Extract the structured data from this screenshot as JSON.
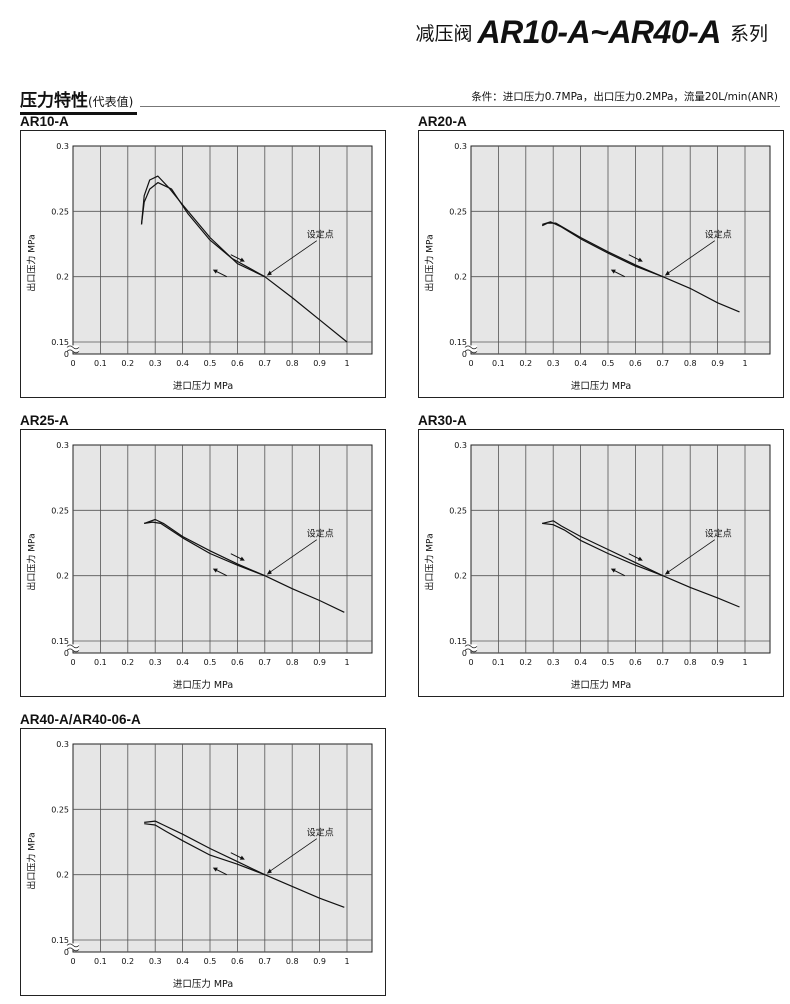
{
  "header": {
    "prefix": "减压阀",
    "model": "AR10-A~AR40-A",
    "suffix": "系列"
  },
  "section": {
    "title": "压力特性",
    "subtitle": "(代表值)",
    "conditions": "条件：进口压力0.7MPa，出口压力0.2MPa，流量20L/min(ANR)"
  },
  "colors": {
    "line": "#111111",
    "grid": "#555555",
    "plot_bg": "#e6e6e6"
  },
  "chart_data": [
    {
      "type": "line",
      "label": "AR10-A",
      "xlabel": "进口压力 MPa",
      "ylabel": "出口压力 MPa",
      "xlim": [
        0,
        1.1
      ],
      "ylim": [
        0,
        0.3
      ],
      "y_axis_break": "0-0.15",
      "x_ticks": [
        "0",
        "0.1",
        "0.2",
        "0.3",
        "0.4",
        "0.5",
        "0.6",
        "0.7",
        "0.8",
        "0.9",
        "1"
      ],
      "y_ticks": [
        "0",
        "0.15",
        "0.2",
        "0.25",
        "0.3"
      ],
      "grid": true,
      "annotation": {
        "text": "设定点",
        "point": [
          0.7,
          0.2
        ]
      },
      "series": [
        {
          "x": [
            0.7,
            0.6,
            0.5,
            0.4,
            0.35,
            0.31,
            0.28,
            0.26,
            0.25
          ],
          "y": [
            0.2,
            0.21,
            0.23,
            0.255,
            0.268,
            0.277,
            0.274,
            0.262,
            0.24
          ]
        },
        {
          "x": [
            0.25,
            0.26,
            0.28,
            0.31,
            0.36,
            0.42,
            0.5,
            0.58,
            0.64,
            0.7,
            0.8,
            0.9,
            1.0
          ],
          "y": [
            0.24,
            0.257,
            0.267,
            0.272,
            0.267,
            0.248,
            0.228,
            0.214,
            0.207,
            0.2,
            0.184,
            0.167,
            0.15
          ]
        }
      ]
    },
    {
      "type": "line",
      "label": "AR20-A",
      "xlabel": "进口压力 MPa",
      "ylabel": "出口压力 MPa",
      "xlim": [
        0,
        1.1
      ],
      "ylim": [
        0,
        0.3
      ],
      "y_axis_break": "0-0.15",
      "x_ticks": [
        "0",
        "0.1",
        "0.2",
        "0.3",
        "0.4",
        "0.5",
        "0.6",
        "0.7",
        "0.8",
        "0.9",
        "1"
      ],
      "y_ticks": [
        "0",
        "0.15",
        "0.2",
        "0.25",
        "0.3"
      ],
      "grid": true,
      "annotation": {
        "text": "设定点",
        "point": [
          0.7,
          0.2
        ]
      },
      "series": [
        {
          "x": [
            0.7,
            0.6,
            0.5,
            0.4,
            0.33,
            0.29,
            0.26
          ],
          "y": [
            0.2,
            0.208,
            0.218,
            0.229,
            0.238,
            0.242,
            0.24
          ]
        },
        {
          "x": [
            0.26,
            0.28,
            0.31,
            0.4,
            0.5,
            0.6,
            0.7,
            0.8,
            0.9,
            0.98
          ],
          "y": [
            0.239,
            0.241,
            0.241,
            0.23,
            0.219,
            0.209,
            0.2,
            0.191,
            0.18,
            0.173
          ]
        }
      ]
    },
    {
      "type": "line",
      "label": "AR25-A",
      "xlabel": "进口压力 MPa",
      "ylabel": "出口压力 MPa",
      "xlim": [
        0,
        1.1
      ],
      "ylim": [
        0,
        0.3
      ],
      "y_axis_break": "0-0.15",
      "x_ticks": [
        "0",
        "0.1",
        "0.2",
        "0.3",
        "0.4",
        "0.5",
        "0.6",
        "0.7",
        "0.8",
        "0.9",
        "1"
      ],
      "y_ticks": [
        "0",
        "0.15",
        "0.2",
        "0.25",
        "0.3"
      ],
      "grid": true,
      "annotation": {
        "text": "设定点",
        "point": [
          0.7,
          0.2
        ]
      },
      "series": [
        {
          "x": [
            0.7,
            0.6,
            0.5,
            0.4,
            0.33,
            0.3,
            0.26
          ],
          "y": [
            0.2,
            0.209,
            0.219,
            0.23,
            0.24,
            0.243,
            0.24
          ]
        },
        {
          "x": [
            0.26,
            0.29,
            0.32,
            0.4,
            0.5,
            0.6,
            0.7,
            0.8,
            0.9,
            0.99
          ],
          "y": [
            0.24,
            0.241,
            0.24,
            0.229,
            0.217,
            0.208,
            0.2,
            0.19,
            0.181,
            0.172
          ]
        }
      ]
    },
    {
      "type": "line",
      "label": "AR30-A",
      "xlabel": "进口压力 MPa",
      "ylabel": "出口压力 MPa",
      "xlim": [
        0,
        1.1
      ],
      "ylim": [
        0,
        0.3
      ],
      "y_axis_break": "0-0.15",
      "x_ticks": [
        "0",
        "0.1",
        "0.2",
        "0.3",
        "0.4",
        "0.5",
        "0.6",
        "0.7",
        "0.8",
        "0.9",
        "1"
      ],
      "y_ticks": [
        "0",
        "0.15",
        "0.2",
        "0.25",
        "0.3"
      ],
      "grid": true,
      "annotation": {
        "text": "设定点",
        "point": [
          0.7,
          0.2
        ]
      },
      "series": [
        {
          "x": [
            0.7,
            0.6,
            0.5,
            0.4,
            0.33,
            0.3,
            0.26
          ],
          "y": [
            0.2,
            0.21,
            0.22,
            0.23,
            0.238,
            0.242,
            0.24
          ]
        },
        {
          "x": [
            0.26,
            0.3,
            0.34,
            0.4,
            0.5,
            0.6,
            0.7,
            0.8,
            0.9,
            0.98
          ],
          "y": [
            0.24,
            0.239,
            0.235,
            0.227,
            0.217,
            0.208,
            0.2,
            0.191,
            0.183,
            0.176
          ]
        }
      ]
    },
    {
      "type": "line",
      "label": "AR40-A/AR40-06-A",
      "xlabel": "进口压力 MPa",
      "ylabel": "出口压力 MPa",
      "xlim": [
        0,
        1.1
      ],
      "ylim": [
        0,
        0.3
      ],
      "y_axis_break": "0-0.15",
      "x_ticks": [
        "0",
        "0.1",
        "0.2",
        "0.3",
        "0.4",
        "0.5",
        "0.6",
        "0.7",
        "0.8",
        "0.9",
        "1"
      ],
      "y_ticks": [
        "0",
        "0.15",
        "0.2",
        "0.25",
        "0.3"
      ],
      "grid": true,
      "annotation": {
        "text": "设定点",
        "point": [
          0.7,
          0.2
        ]
      },
      "series": [
        {
          "x": [
            0.7,
            0.6,
            0.5,
            0.4,
            0.33,
            0.3,
            0.26
          ],
          "y": [
            0.2,
            0.21,
            0.22,
            0.231,
            0.238,
            0.241,
            0.24
          ]
        },
        {
          "x": [
            0.26,
            0.3,
            0.34,
            0.4,
            0.5,
            0.6,
            0.7,
            0.8,
            0.9,
            0.99
          ],
          "y": [
            0.239,
            0.238,
            0.233,
            0.226,
            0.215,
            0.208,
            0.2,
            0.191,
            0.182,
            0.175
          ]
        }
      ]
    }
  ]
}
